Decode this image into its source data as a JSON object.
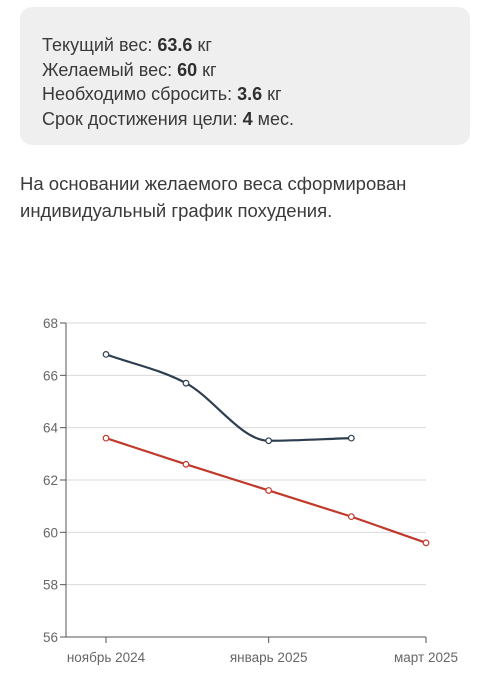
{
  "summary": {
    "current_weight": {
      "label": "Текущий вес:",
      "value": "63.6",
      "unit": "кг"
    },
    "target_weight": {
      "label": "Желаемый вес:",
      "value": "60",
      "unit": "кг"
    },
    "to_lose": {
      "label": "Необходимо сбросить:",
      "value": "3.6",
      "unit": "кг"
    },
    "duration": {
      "label": "Срок достижения цели:",
      "value": "4",
      "unit": "мес."
    }
  },
  "description": "На основании желаемого веса сформирован индивидуальный график похудения.",
  "colors": {
    "card_bg": "#efefef",
    "actual_line": "#2d3e50",
    "plan_line": "#c0392b",
    "grid": "#d9d9d9",
    "axis": "#555555"
  },
  "chart_data": {
    "type": "line",
    "ylim": [
      56,
      68
    ],
    "yticks": [
      "56",
      "58",
      "60",
      "62",
      "64",
      "66",
      "68"
    ],
    "xticks": [
      {
        "label": "ноябрь 2024",
        "x": "2024-11-01"
      },
      {
        "label": "январь 2025",
        "x": "2025-01-01"
      },
      {
        "label": "март 2025",
        "x": "2025-03-01"
      }
    ],
    "xlim": [
      "2024-10-17",
      "2025-03-01"
    ],
    "grid": "horizontal",
    "series": [
      {
        "color": "#2d3e50",
        "smooth": true,
        "points": [
          {
            "x": "2024-11-01",
            "y": 66.8
          },
          {
            "x": "2024-12-01",
            "y": 65.7
          },
          {
            "x": "2025-01-01",
            "y": 63.5
          },
          {
            "x": "2025-02-01",
            "y": 63.6
          }
        ]
      },
      {
        "color": "#c0392b",
        "smooth": false,
        "points": [
          {
            "x": "2024-11-01",
            "y": 63.6
          },
          {
            "x": "2024-12-01",
            "y": 62.6
          },
          {
            "x": "2025-01-01",
            "y": 61.6
          },
          {
            "x": "2025-02-01",
            "y": 60.6
          },
          {
            "x": "2025-03-01",
            "y": 59.6
          }
        ]
      }
    ]
  }
}
